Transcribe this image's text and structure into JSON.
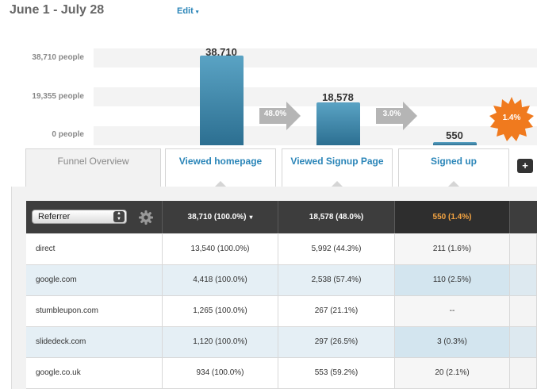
{
  "header": {
    "date_range": "June 1 - July 28",
    "edit_label": "Edit",
    "edit_caret": "▾"
  },
  "chart": {
    "axis_labels": [
      "38,710 people",
      "19,355 people",
      "0 people"
    ],
    "bars": [
      {
        "label": "38,710",
        "value": 38710
      },
      {
        "label": "18,578",
        "value": 18578
      },
      {
        "label": "550",
        "value": 550
      }
    ],
    "arrows": [
      "48.0%",
      "3.0%"
    ],
    "badge": "1.4%",
    "max": 38710
  },
  "tabs": {
    "overview": "Funnel Overview",
    "steps": [
      "Viewed homepage",
      "Viewed Signup Page",
      "Signed up"
    ],
    "add_label": "+"
  },
  "table": {
    "referrer_select": "Referrer",
    "header_caret": "▾",
    "headers": [
      "38,710 (100.0%)",
      "18,578 (48.0%)",
      "550 (1.4%)"
    ],
    "rows": [
      {
        "ref": "direct",
        "c1": "13,540 (100.0%)",
        "c2": "5,992 (44.3%)",
        "c3": "211 (1.6%)"
      },
      {
        "ref": "google.com",
        "c1": "4,418 (100.0%)",
        "c2": "2,538 (57.4%)",
        "c3": "110 (2.5%)"
      },
      {
        "ref": "stumbleupon.com",
        "c1": "1,265 (100.0%)",
        "c2": "267 (21.1%)",
        "c3": "--"
      },
      {
        "ref": "slidedeck.com",
        "c1": "1,120 (100.0%)",
        "c2": "297 (26.5%)",
        "c3": "3 (0.3%)"
      },
      {
        "ref": "google.co.uk",
        "c1": "934 (100.0%)",
        "c2": "553 (59.2%)",
        "c3": "20 (2.1%)"
      }
    ]
  },
  "colors": {
    "accent": "#2a85b8",
    "bar": "#3a86a8",
    "badge": "#f07a1e",
    "header_dark": "#3d3d3d"
  }
}
